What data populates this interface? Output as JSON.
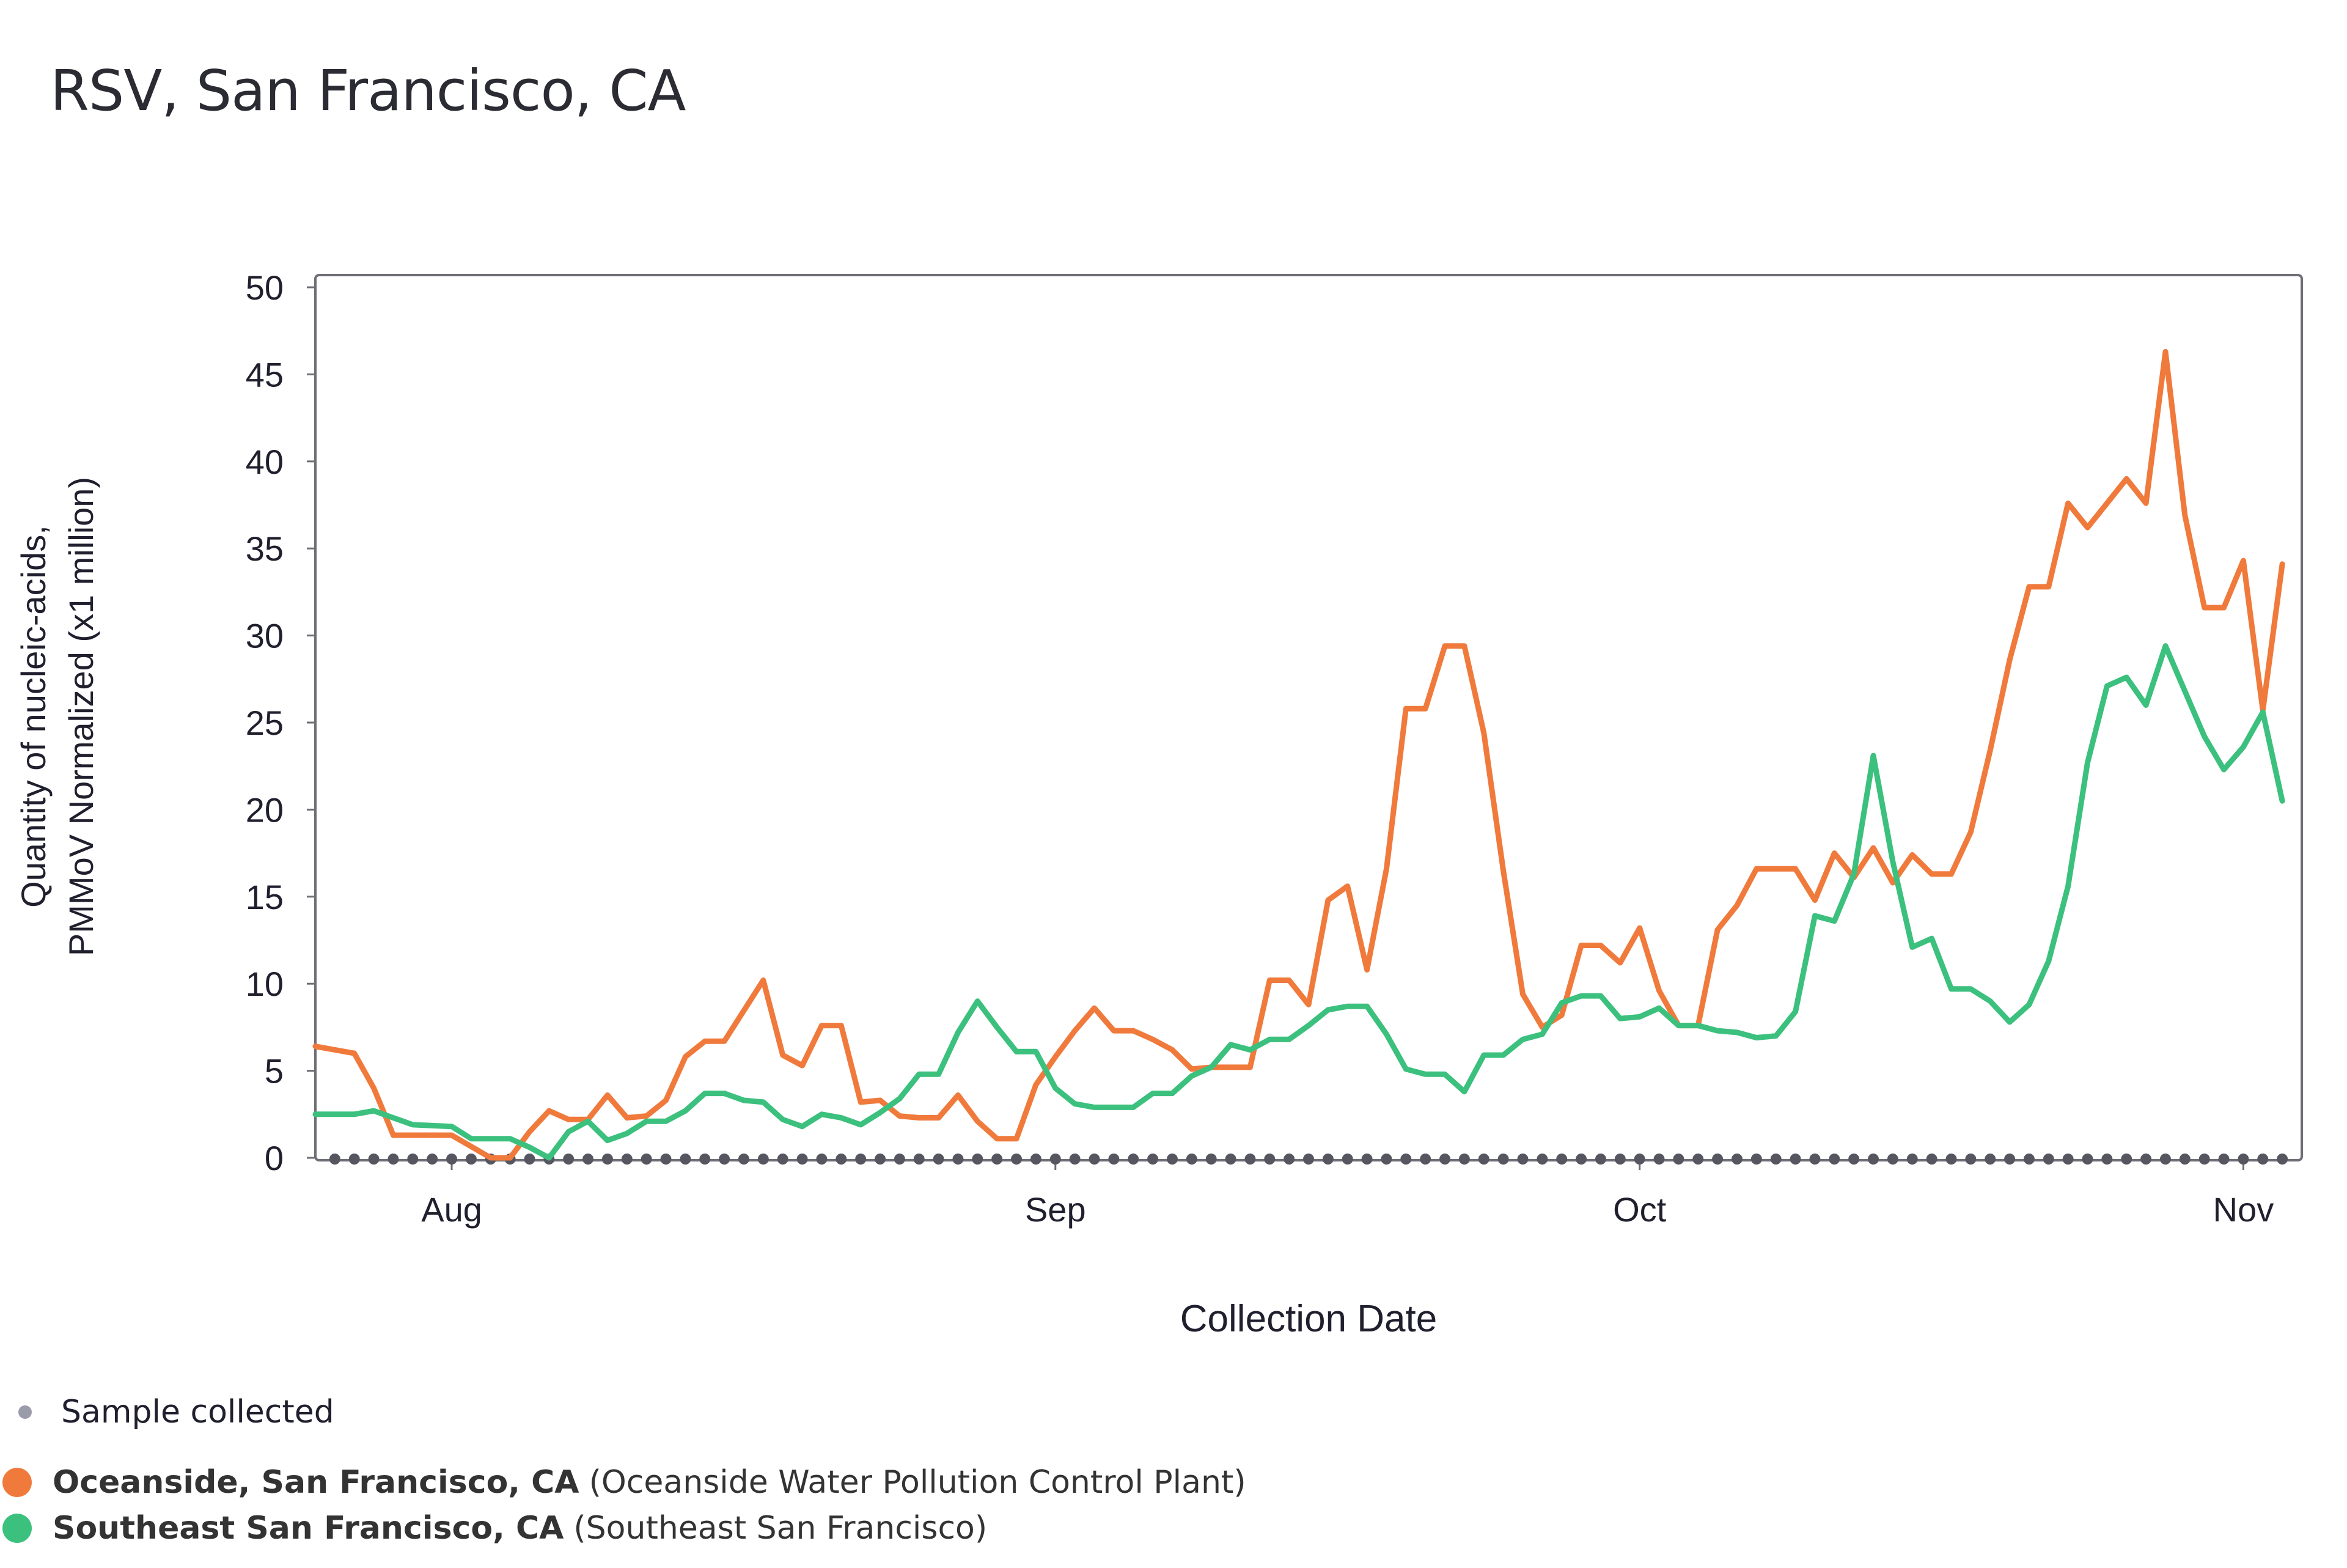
{
  "title": "RSV, San Francisco, CA",
  "chart_data": {
    "type": "line",
    "xlabel": "Collection Date",
    "ylabel_lines": [
      "Quantity of nucleic-acids,",
      "PMMoV Normalized (x1 million)"
    ],
    "ylim": [
      0,
      50
    ],
    "yticks": [
      0,
      5,
      10,
      15,
      20,
      25,
      30,
      35,
      40,
      45,
      50
    ],
    "xlim": [
      "2023-07-25",
      "2023-11-04"
    ],
    "xticks": [
      {
        "date": "2023-08-01",
        "label": "Aug"
      },
      {
        "date": "2023-09-01",
        "label": "Sep"
      },
      {
        "date": "2023-10-01",
        "label": "Oct"
      },
      {
        "date": "2023-11-01",
        "label": "Nov"
      }
    ],
    "sample_dates_range": [
      "2023-07-26",
      "2023-11-03"
    ],
    "series": [
      {
        "name": "Oceanside, San Francisco, CA",
        "facility": "(Oceanside Water Pollution Control Plant)",
        "color": "#f07a3c",
        "points": [
          [
            "2023-07-25",
            6.4
          ],
          [
            "2023-07-27",
            6.0
          ],
          [
            "2023-07-28",
            4.0
          ],
          [
            "2023-07-29",
            1.3
          ],
          [
            "2023-07-31",
            1.3
          ],
          [
            "2023-08-01",
            1.3
          ],
          [
            "2023-08-03",
            0.0
          ],
          [
            "2023-08-04",
            0.0
          ],
          [
            "2023-08-05",
            1.5
          ],
          [
            "2023-08-06",
            2.7
          ],
          [
            "2023-08-07",
            2.2
          ],
          [
            "2023-08-08",
            2.2
          ],
          [
            "2023-08-09",
            3.6
          ],
          [
            "2023-08-10",
            2.3
          ],
          [
            "2023-08-11",
            2.4
          ],
          [
            "2023-08-12",
            3.3
          ],
          [
            "2023-08-13",
            5.8
          ],
          [
            "2023-08-14",
            6.7
          ],
          [
            "2023-08-15",
            6.7
          ],
          [
            "2023-08-17",
            10.2
          ],
          [
            "2023-08-18",
            5.9
          ],
          [
            "2023-08-19",
            5.3
          ],
          [
            "2023-08-20",
            7.6
          ],
          [
            "2023-08-21",
            7.6
          ],
          [
            "2023-08-22",
            3.2
          ],
          [
            "2023-08-23",
            3.3
          ],
          [
            "2023-08-24",
            2.4
          ],
          [
            "2023-08-25",
            2.3
          ],
          [
            "2023-08-26",
            2.3
          ],
          [
            "2023-08-27",
            3.6
          ],
          [
            "2023-08-28",
            2.1
          ],
          [
            "2023-08-29",
            1.1
          ],
          [
            "2023-08-30",
            1.1
          ],
          [
            "2023-08-31",
            4.2
          ],
          [
            "2023-09-01",
            5.8
          ],
          [
            "2023-09-02",
            7.3
          ],
          [
            "2023-09-03",
            8.6
          ],
          [
            "2023-09-04",
            7.3
          ],
          [
            "2023-09-05",
            7.3
          ],
          [
            "2023-09-06",
            6.8
          ],
          [
            "2023-09-07",
            6.2
          ],
          [
            "2023-09-08",
            5.1
          ],
          [
            "2023-09-09",
            5.2
          ],
          [
            "2023-09-10",
            5.2
          ],
          [
            "2023-09-11",
            5.2
          ],
          [
            "2023-09-12",
            10.2
          ],
          [
            "2023-09-13",
            10.2
          ],
          [
            "2023-09-14",
            8.8
          ],
          [
            "2023-09-15",
            14.8
          ],
          [
            "2023-09-16",
            15.6
          ],
          [
            "2023-09-17",
            10.8
          ],
          [
            "2023-09-18",
            16.6
          ],
          [
            "2023-09-19",
            25.8
          ],
          [
            "2023-09-20",
            25.8
          ],
          [
            "2023-09-21",
            29.4
          ],
          [
            "2023-09-22",
            29.4
          ],
          [
            "2023-09-23",
            24.4
          ],
          [
            "2023-09-24",
            16.5
          ],
          [
            "2023-09-25",
            9.4
          ],
          [
            "2023-09-26",
            7.5
          ],
          [
            "2023-09-27",
            8.2
          ],
          [
            "2023-09-28",
            12.2
          ],
          [
            "2023-09-29",
            12.2
          ],
          [
            "2023-09-30",
            11.2
          ],
          [
            "2023-10-01",
            13.2
          ],
          [
            "2023-10-02",
            9.6
          ],
          [
            "2023-10-03",
            7.6
          ],
          [
            "2023-10-04",
            7.6
          ],
          [
            "2023-10-05",
            13.1
          ],
          [
            "2023-10-06",
            14.5
          ],
          [
            "2023-10-07",
            16.6
          ],
          [
            "2023-10-08",
            16.6
          ],
          [
            "2023-10-09",
            16.6
          ],
          [
            "2023-10-10",
            14.8
          ],
          [
            "2023-10-11",
            17.5
          ],
          [
            "2023-10-12",
            16.1
          ],
          [
            "2023-10-13",
            17.8
          ],
          [
            "2023-10-14",
            15.8
          ],
          [
            "2023-10-15",
            17.4
          ],
          [
            "2023-10-16",
            16.3
          ],
          [
            "2023-10-17",
            16.3
          ],
          [
            "2023-10-18",
            18.7
          ],
          [
            "2023-10-19",
            23.4
          ],
          [
            "2023-10-20",
            28.6
          ],
          [
            "2023-10-21",
            32.8
          ],
          [
            "2023-10-22",
            32.8
          ],
          [
            "2023-10-23",
            37.6
          ],
          [
            "2023-10-24",
            36.2
          ],
          [
            "2023-10-25",
            37.6
          ],
          [
            "2023-10-26",
            39.0
          ],
          [
            "2023-10-27",
            37.6
          ],
          [
            "2023-10-28",
            46.3
          ],
          [
            "2023-10-29",
            36.9
          ],
          [
            "2023-10-30",
            31.6
          ],
          [
            "2023-10-31",
            31.6
          ],
          [
            "2023-11-01",
            34.3
          ],
          [
            "2023-11-02",
            25.7
          ],
          [
            "2023-11-03",
            34.1
          ]
        ]
      },
      {
        "name": "Southeast San Francisco, CA",
        "facility": "(Southeast San Francisco)",
        "color": "#3cc07e",
        "points": [
          [
            "2023-07-25",
            2.5
          ],
          [
            "2023-07-27",
            2.5
          ],
          [
            "2023-07-28",
            2.7
          ],
          [
            "2023-07-30",
            1.9
          ],
          [
            "2023-08-01",
            1.8
          ],
          [
            "2023-08-02",
            1.1
          ],
          [
            "2023-08-04",
            1.1
          ],
          [
            "2023-08-05",
            0.6
          ],
          [
            "2023-08-06",
            0.0
          ],
          [
            "2023-08-07",
            1.5
          ],
          [
            "2023-08-08",
            2.1
          ],
          [
            "2023-08-09",
            1.0
          ],
          [
            "2023-08-10",
            1.4
          ],
          [
            "2023-08-11",
            2.1
          ],
          [
            "2023-08-12",
            2.1
          ],
          [
            "2023-08-13",
            2.7
          ],
          [
            "2023-08-14",
            3.7
          ],
          [
            "2023-08-15",
            3.7
          ],
          [
            "2023-08-16",
            3.3
          ],
          [
            "2023-08-17",
            3.2
          ],
          [
            "2023-08-18",
            2.2
          ],
          [
            "2023-08-19",
            1.8
          ],
          [
            "2023-08-20",
            2.5
          ],
          [
            "2023-08-21",
            2.3
          ],
          [
            "2023-08-22",
            1.9
          ],
          [
            "2023-08-23",
            2.6
          ],
          [
            "2023-08-24",
            3.4
          ],
          [
            "2023-08-25",
            4.8
          ],
          [
            "2023-08-26",
            4.8
          ],
          [
            "2023-08-27",
            7.2
          ],
          [
            "2023-08-28",
            9.0
          ],
          [
            "2023-08-29",
            7.5
          ],
          [
            "2023-08-30",
            6.1
          ],
          [
            "2023-08-31",
            6.1
          ],
          [
            "2023-09-01",
            4.0
          ],
          [
            "2023-09-02",
            3.1
          ],
          [
            "2023-09-03",
            2.9
          ],
          [
            "2023-09-04",
            2.9
          ],
          [
            "2023-09-05",
            2.9
          ],
          [
            "2023-09-06",
            3.7
          ],
          [
            "2023-09-07",
            3.7
          ],
          [
            "2023-09-08",
            4.7
          ],
          [
            "2023-09-09",
            5.2
          ],
          [
            "2023-09-10",
            6.5
          ],
          [
            "2023-09-11",
            6.2
          ],
          [
            "2023-09-12",
            6.8
          ],
          [
            "2023-09-13",
            6.8
          ],
          [
            "2023-09-14",
            7.6
          ],
          [
            "2023-09-15",
            8.5
          ],
          [
            "2023-09-16",
            8.7
          ],
          [
            "2023-09-17",
            8.7
          ],
          [
            "2023-09-18",
            7.1
          ],
          [
            "2023-09-19",
            5.1
          ],
          [
            "2023-09-20",
            4.8
          ],
          [
            "2023-09-21",
            4.8
          ],
          [
            "2023-09-22",
            3.8
          ],
          [
            "2023-09-23",
            5.9
          ],
          [
            "2023-09-24",
            5.9
          ],
          [
            "2023-09-25",
            6.8
          ],
          [
            "2023-09-26",
            7.1
          ],
          [
            "2023-09-27",
            8.9
          ],
          [
            "2023-09-28",
            9.3
          ],
          [
            "2023-09-29",
            9.3
          ],
          [
            "2023-09-30",
            8.0
          ],
          [
            "2023-10-01",
            8.1
          ],
          [
            "2023-10-02",
            8.6
          ],
          [
            "2023-10-03",
            7.6
          ],
          [
            "2023-10-04",
            7.6
          ],
          [
            "2023-10-05",
            7.3
          ],
          [
            "2023-10-06",
            7.2
          ],
          [
            "2023-10-07",
            6.9
          ],
          [
            "2023-10-08",
            7.0
          ],
          [
            "2023-10-09",
            8.4
          ],
          [
            "2023-10-10",
            13.9
          ],
          [
            "2023-10-11",
            13.6
          ],
          [
            "2023-10-12",
            16.3
          ],
          [
            "2023-10-13",
            23.1
          ],
          [
            "2023-10-14",
            17.0
          ],
          [
            "2023-10-15",
            12.1
          ],
          [
            "2023-10-16",
            12.6
          ],
          [
            "2023-10-17",
            9.7
          ],
          [
            "2023-10-18",
            9.7
          ],
          [
            "2023-10-19",
            9.0
          ],
          [
            "2023-10-20",
            7.8
          ],
          [
            "2023-10-21",
            8.8
          ],
          [
            "2023-10-22",
            11.3
          ],
          [
            "2023-10-23",
            15.6
          ],
          [
            "2023-10-24",
            22.7
          ],
          [
            "2023-10-25",
            27.1
          ],
          [
            "2023-10-26",
            27.6
          ],
          [
            "2023-10-27",
            26.0
          ],
          [
            "2023-10-28",
            29.4
          ],
          [
            "2023-10-29",
            26.8
          ],
          [
            "2023-10-30",
            24.2
          ],
          [
            "2023-10-31",
            22.3
          ],
          [
            "2023-11-01",
            23.6
          ],
          [
            "2023-11-02",
            25.6
          ],
          [
            "2023-11-03",
            20.5
          ]
        ]
      }
    ],
    "sample_marker_color": "#55565f"
  },
  "legend": {
    "sample_label": "Sample collected",
    "sample_dot_color": "#9a9caa"
  }
}
